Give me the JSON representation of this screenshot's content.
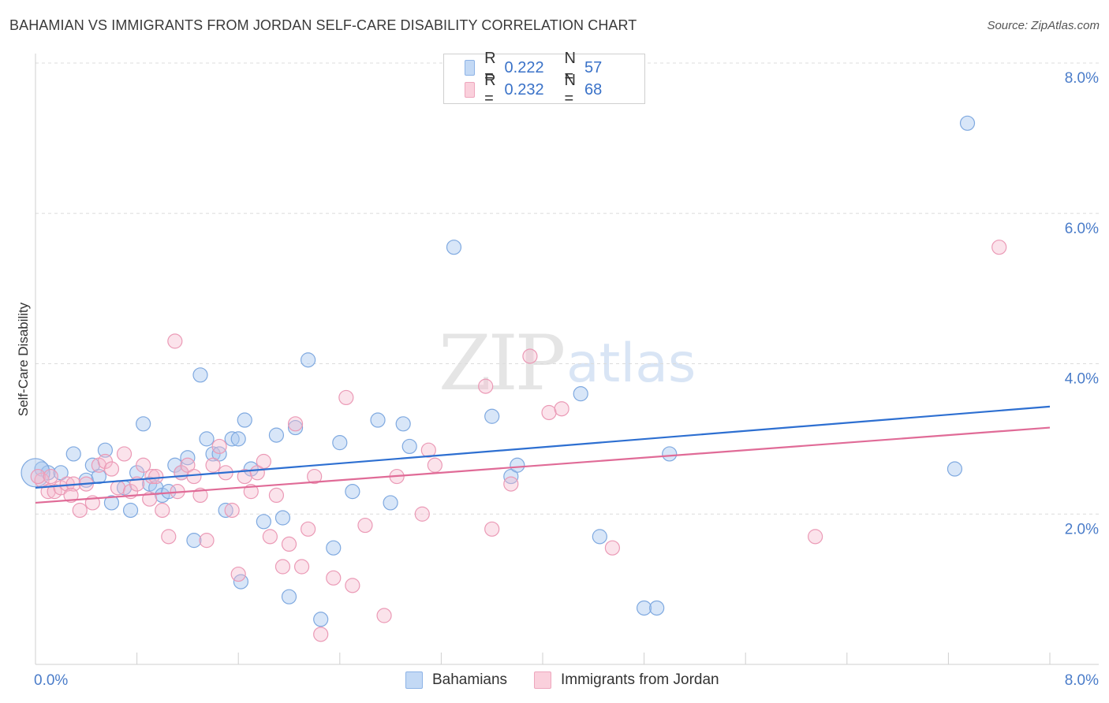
{
  "title": "BAHAMIAN VS IMMIGRANTS FROM JORDAN SELF-CARE DISABILITY CORRELATION CHART",
  "source": "Source: ZipAtlas.com",
  "watermark": {
    "main": "ZIP",
    "sub": "atlas"
  },
  "legend": {
    "r_label": "R =",
    "n_label": "N =",
    "entries": [
      {
        "r": "0.222",
        "n": "57",
        "color": "#a8c8f0"
      },
      {
        "r": "0.232",
        "n": "68",
        "color": "#f5b8cc"
      }
    ]
  },
  "bottom_legend": [
    "Bahamians",
    "Immigrants from Jordan"
  ],
  "chart_data": {
    "type": "scatter",
    "title": "BAHAMIAN VS IMMIGRANTS FROM JORDAN SELF-CARE DISABILITY CORRELATION CHART",
    "xlabel": "",
    "ylabel": "Self-Care Disability",
    "xlim": [
      0,
      8
    ],
    "ylim": [
      0,
      8
    ],
    "x_tick_labels": [
      "0.0%",
      "8.0%"
    ],
    "y_tick_labels": [
      "2.0%",
      "4.0%",
      "6.0%",
      "8.0%"
    ],
    "y_ticks": [
      2,
      4,
      6,
      8
    ],
    "grid": true,
    "legend_position": "top-center",
    "series": [
      {
        "name": "Bahamians",
        "color": "#6fa3e6",
        "trend": {
          "x": [
            0,
            8
          ],
          "y": [
            2.35,
            3.43
          ]
        },
        "points": [
          [
            0.05,
            2.6
          ],
          [
            0.1,
            2.55
          ],
          [
            0.2,
            2.55
          ],
          [
            0.3,
            2.8
          ],
          [
            0.4,
            2.45
          ],
          [
            0.45,
            2.65
          ],
          [
            0.5,
            2.5
          ],
          [
            0.55,
            2.85
          ],
          [
            0.6,
            2.15
          ],
          [
            0.7,
            2.35
          ],
          [
            0.75,
            2.05
          ],
          [
            0.8,
            2.55
          ],
          [
            0.85,
            3.2
          ],
          [
            0.9,
            2.4
          ],
          [
            0.95,
            2.35
          ],
          [
            1.0,
            2.25
          ],
          [
            1.05,
            2.3
          ],
          [
            1.1,
            2.65
          ],
          [
            1.15,
            2.55
          ],
          [
            1.2,
            2.75
          ],
          [
            1.25,
            1.65
          ],
          [
            1.3,
            3.85
          ],
          [
            1.35,
            3.0
          ],
          [
            1.4,
            2.8
          ],
          [
            1.45,
            2.8
          ],
          [
            1.5,
            2.05
          ],
          [
            1.55,
            3.0
          ],
          [
            1.6,
            3.0
          ],
          [
            1.62,
            1.1
          ],
          [
            1.65,
            3.25
          ],
          [
            1.7,
            2.6
          ],
          [
            1.8,
            1.9
          ],
          [
            1.9,
            3.05
          ],
          [
            1.95,
            1.95
          ],
          [
            2.0,
            0.9
          ],
          [
            2.05,
            3.15
          ],
          [
            2.15,
            4.05
          ],
          [
            2.25,
            0.6
          ],
          [
            2.35,
            1.55
          ],
          [
            2.4,
            2.95
          ],
          [
            2.5,
            2.3
          ],
          [
            2.7,
            3.25
          ],
          [
            2.8,
            2.15
          ],
          [
            2.9,
            3.2
          ],
          [
            2.95,
            2.9
          ],
          [
            3.3,
            5.55
          ],
          [
            3.6,
            3.3
          ],
          [
            3.75,
            2.5
          ],
          [
            3.8,
            2.65
          ],
          [
            4.3,
            3.6
          ],
          [
            4.45,
            1.7
          ],
          [
            4.8,
            0.75
          ],
          [
            4.9,
            0.75
          ],
          [
            5.0,
            2.8
          ],
          [
            7.25,
            2.6
          ],
          [
            7.35,
            7.2
          ],
          [
            0.0,
            2.55
          ]
        ]
      },
      {
        "name": "Immigrants from Jordan",
        "color": "#f09ab5",
        "trend": {
          "x": [
            0,
            8
          ],
          "y": [
            2.15,
            3.15
          ]
        },
        "points": [
          [
            0.05,
            2.45
          ],
          [
            0.1,
            2.3
          ],
          [
            0.15,
            2.3
          ],
          [
            0.2,
            2.35
          ],
          [
            0.25,
            2.4
          ],
          [
            0.3,
            2.4
          ],
          [
            0.35,
            2.05
          ],
          [
            0.4,
            2.4
          ],
          [
            0.45,
            2.15
          ],
          [
            0.5,
            2.65
          ],
          [
            0.55,
            2.7
          ],
          [
            0.6,
            2.6
          ],
          [
            0.65,
            2.35
          ],
          [
            0.7,
            2.8
          ],
          [
            0.75,
            2.3
          ],
          [
            0.8,
            2.4
          ],
          [
            0.85,
            2.65
          ],
          [
            0.9,
            2.2
          ],
          [
            0.92,
            2.5
          ],
          [
            0.95,
            2.5
          ],
          [
            1.0,
            2.05
          ],
          [
            1.05,
            1.7
          ],
          [
            1.1,
            4.3
          ],
          [
            1.12,
            2.3
          ],
          [
            1.15,
            2.55
          ],
          [
            1.2,
            2.65
          ],
          [
            1.25,
            2.5
          ],
          [
            1.3,
            2.25
          ],
          [
            1.35,
            1.65
          ],
          [
            1.4,
            2.65
          ],
          [
            1.45,
            2.9
          ],
          [
            1.5,
            2.55
          ],
          [
            1.55,
            2.05
          ],
          [
            1.6,
            1.2
          ],
          [
            1.65,
            2.5
          ],
          [
            1.7,
            2.3
          ],
          [
            1.75,
            2.55
          ],
          [
            1.8,
            2.7
          ],
          [
            1.85,
            1.7
          ],
          [
            1.9,
            2.25
          ],
          [
            1.95,
            1.3
          ],
          [
            2.0,
            1.6
          ],
          [
            2.05,
            3.2
          ],
          [
            2.1,
            1.3
          ],
          [
            2.15,
            1.8
          ],
          [
            2.2,
            2.5
          ],
          [
            2.25,
            0.4
          ],
          [
            2.35,
            1.15
          ],
          [
            2.45,
            3.55
          ],
          [
            2.5,
            1.05
          ],
          [
            2.6,
            1.85
          ],
          [
            2.75,
            0.65
          ],
          [
            2.85,
            2.5
          ],
          [
            3.05,
            2.0
          ],
          [
            3.1,
            2.85
          ],
          [
            3.15,
            2.65
          ],
          [
            3.55,
            3.7
          ],
          [
            3.6,
            1.8
          ],
          [
            3.75,
            2.4
          ],
          [
            3.9,
            4.1
          ],
          [
            4.05,
            3.35
          ],
          [
            4.15,
            3.4
          ],
          [
            4.55,
            1.55
          ],
          [
            6.15,
            1.7
          ],
          [
            7.6,
            5.55
          ],
          [
            0.02,
            2.5
          ],
          [
            0.12,
            2.5
          ],
          [
            0.28,
            2.25
          ]
        ]
      }
    ]
  }
}
